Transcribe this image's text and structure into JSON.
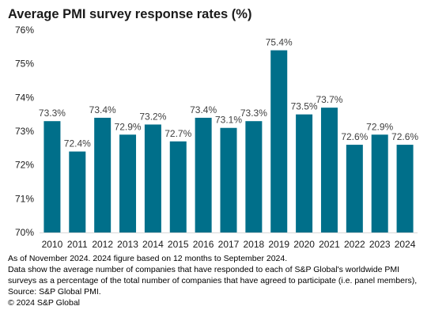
{
  "chart_data": {
    "type": "bar",
    "title": "Average PMI survey response rates (%)",
    "categories": [
      "2010",
      "2011",
      "2012",
      "2013",
      "2014",
      "2015",
      "2016",
      "2017",
      "2018",
      "2019",
      "2020",
      "2021",
      "2022",
      "2023",
      "2024"
    ],
    "values": [
      73.3,
      72.4,
      73.4,
      72.9,
      73.2,
      72.7,
      73.4,
      73.1,
      73.3,
      75.4,
      73.5,
      73.7,
      72.6,
      72.9,
      72.6
    ],
    "data_labels": [
      "73.3%",
      "72.4%",
      "73.4%",
      "72.9%",
      "73.2%",
      "72.7%",
      "73.4%",
      "73.1%",
      "73.3%",
      "75.4%",
      "73.5%",
      "73.7%",
      "72.6%",
      "72.9%",
      "72.6%"
    ],
    "ylim": [
      70,
      76
    ],
    "yticks": [
      70,
      71,
      72,
      73,
      74,
      75,
      76
    ],
    "ytick_labels": [
      "70%",
      "71%",
      "72%",
      "73%",
      "74%",
      "75%",
      "76%"
    ],
    "bar_color": "#006f8a",
    "grid": false,
    "xlabel": "",
    "ylabel": ""
  },
  "footnotes": [
    "As of November 2024. 2024 figure based on 12 months to September 2024.",
    "Data show the average number of companies that have responded to each of S&P Global's worldwide PMI",
    "surveys as a percentage of the total number of companies that have agreed to participate (i.e. panel members),",
    "Source: S&P Global PMI.",
    "© 2024 S&P Global"
  ]
}
